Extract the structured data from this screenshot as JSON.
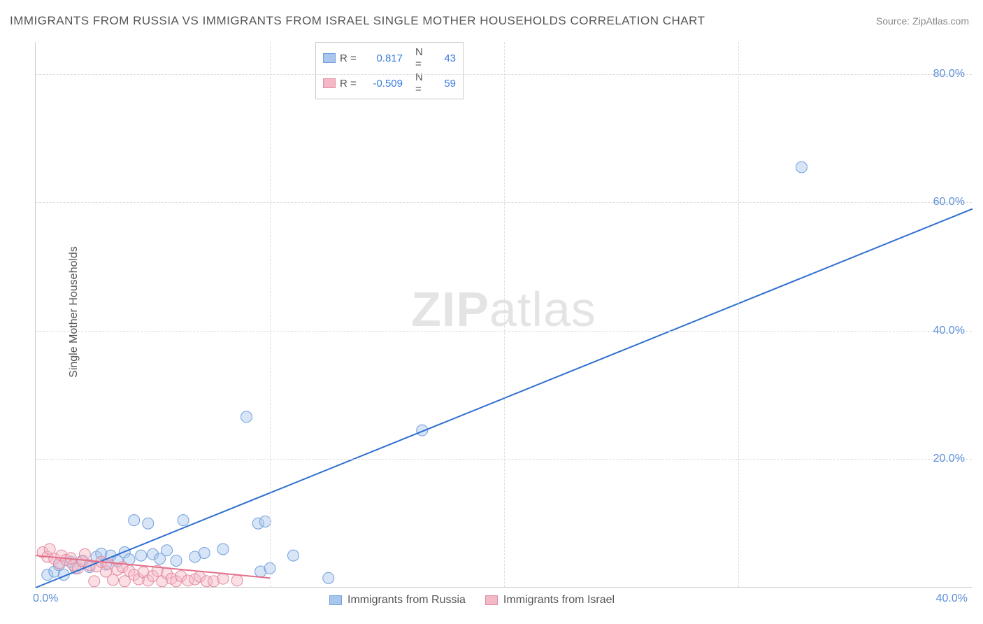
{
  "title": "IMMIGRANTS FROM RUSSIA VS IMMIGRANTS FROM ISRAEL SINGLE MOTHER HOUSEHOLDS CORRELATION CHART",
  "source_label": "Source:",
  "source_name": "ZipAtlas.com",
  "watermark_bold": "ZIP",
  "watermark_light": "atlas",
  "ylabel": "Single Mother Households",
  "chart": {
    "type": "scatter",
    "background_color": "#ffffff",
    "grid_color": "#dddddd",
    "axis_color": "#cccccc",
    "tick_label_color": "#5b8fd6",
    "label_color": "#555555",
    "title_color": "#555555",
    "title_fontsize": 17,
    "label_fontsize": 16,
    "xlim": [
      0,
      40
    ],
    "ylim": [
      0,
      85
    ],
    "xticks": [
      0,
      10,
      20,
      30,
      40
    ],
    "yticks": [
      20,
      40,
      60,
      80
    ],
    "ytick_labels": [
      "20.0%",
      "40.0%",
      "60.0%",
      "80.0%"
    ],
    "xtick_first_label": "0.0%",
    "xtick_last_label": "40.0%",
    "marker_radius": 8,
    "marker_opacity": 0.45,
    "line_width": 2
  },
  "stats_legend": {
    "r_label": "R =",
    "n_label": "N ="
  },
  "series": [
    {
      "name": "Immigrants from Russia",
      "fill_color": "#a9c6ec",
      "stroke_color": "#6f9fde",
      "line_color": "#2f6fd0",
      "r_value": "0.817",
      "n_value": "43",
      "trend": {
        "x1": 0,
        "y1": 0,
        "x2": 40,
        "y2": 59
      },
      "points": [
        [
          0.5,
          2.0
        ],
        [
          0.8,
          2.5
        ],
        [
          1.0,
          3.5
        ],
        [
          1.2,
          2.0
        ],
        [
          1.5,
          4.0
        ],
        [
          1.7,
          3.0
        ],
        [
          2.0,
          4.2
        ],
        [
          2.3,
          3.2
        ],
        [
          2.6,
          4.8
        ],
        [
          2.8,
          5.3
        ],
        [
          3.0,
          3.6
        ],
        [
          3.2,
          5.0
        ],
        [
          3.5,
          4.1
        ],
        [
          3.8,
          5.5
        ],
        [
          4.0,
          4.4
        ],
        [
          4.2,
          10.5
        ],
        [
          4.5,
          5.0
        ],
        [
          4.8,
          10.0
        ],
        [
          5.0,
          5.2
        ],
        [
          5.3,
          4.5
        ],
        [
          5.6,
          5.8
        ],
        [
          6.0,
          4.2
        ],
        [
          6.3,
          10.5
        ],
        [
          6.8,
          4.8
        ],
        [
          7.2,
          5.4
        ],
        [
          8.0,
          6.0
        ],
        [
          9.0,
          26.6
        ],
        [
          9.5,
          10.0
        ],
        [
          9.6,
          2.5
        ],
        [
          9.8,
          10.3
        ],
        [
          10.0,
          3.0
        ],
        [
          11.0,
          5.0
        ],
        [
          12.5,
          1.5
        ],
        [
          16.5,
          24.5
        ],
        [
          32.7,
          65.5
        ]
      ]
    },
    {
      "name": "Immigrants from Israel",
      "fill_color": "#f3b9c6",
      "stroke_color": "#e48aa0",
      "line_color": "#e36f8a",
      "r_value": "-0.509",
      "n_value": "59",
      "trend": {
        "x1": 0,
        "y1": 5.0,
        "x2": 10,
        "y2": 1.5
      },
      "points": [
        [
          0.3,
          5.5
        ],
        [
          0.5,
          4.8
        ],
        [
          0.6,
          6.0
        ],
        [
          0.8,
          4.5
        ],
        [
          1.0,
          3.8
        ],
        [
          1.1,
          5.0
        ],
        [
          1.3,
          4.3
        ],
        [
          1.5,
          4.6
        ],
        [
          1.6,
          3.5
        ],
        [
          1.8,
          3.0
        ],
        [
          2.0,
          4.1
        ],
        [
          2.1,
          5.2
        ],
        [
          2.3,
          3.5
        ],
        [
          2.5,
          1.0
        ],
        [
          2.6,
          3.3
        ],
        [
          2.8,
          4.0
        ],
        [
          3.0,
          2.5
        ],
        [
          3.1,
          3.7
        ],
        [
          3.3,
          1.2
        ],
        [
          3.5,
          2.8
        ],
        [
          3.7,
          3.2
        ],
        [
          3.8,
          1.0
        ],
        [
          4.0,
          2.6
        ],
        [
          4.2,
          2.0
        ],
        [
          4.4,
          1.3
        ],
        [
          4.6,
          2.4
        ],
        [
          4.8,
          1.1
        ],
        [
          5.0,
          1.8
        ],
        [
          5.2,
          2.6
        ],
        [
          5.4,
          1.0
        ],
        [
          5.6,
          2.2
        ],
        [
          5.8,
          1.4
        ],
        [
          6.0,
          1.0
        ],
        [
          6.2,
          1.8
        ],
        [
          6.5,
          1.1
        ],
        [
          6.8,
          1.3
        ],
        [
          7.0,
          1.7
        ],
        [
          7.3,
          1.0
        ],
        [
          7.6,
          1.0
        ],
        [
          8.0,
          1.4
        ],
        [
          8.6,
          1.1
        ]
      ]
    }
  ]
}
